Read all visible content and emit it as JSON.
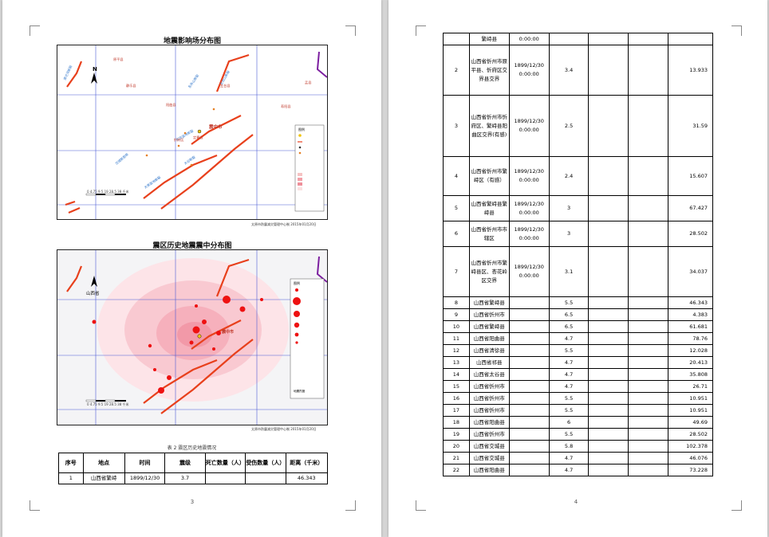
{
  "page3": {
    "page_number": "3",
    "map1": {
      "title": "地震影响场分布图",
      "credit": "太原市防震减灾管理中心制 2015年01月20日",
      "scale": "0 4.75 9.5 19 28.5 38 千米",
      "labels": {
        "north": "N",
        "epicenter": "震中市",
        "county1": "原平县",
        "county2": "五台县",
        "county3": "定襄县",
        "county4": "忻府区",
        "county5": "静乐县",
        "county6": "阳曲县",
        "county7": "寿阳县",
        "county8": "盂县",
        "legend_title": "图例"
      },
      "legend_items": [
        "震中",
        "断裂带",
        "县城",
        "乡镇",
        "烈度区"
      ]
    },
    "map2": {
      "title": "震区历史地震震中分布图",
      "credit": "太原市防震减灾管理中心制 2015年01月20日",
      "scale": "0 4.75 9.5 19 28.5 38 千米",
      "labels": {
        "province": "山西省",
        "epicenter": "震中市",
        "legend_title": "图例",
        "intensity": "地震烈度"
      },
      "legend_items": [
        "震中",
        "7级以上地震",
        "6级地震",
        "5级地震",
        "4级地震",
        "3级地震",
        "断裂带",
        "县城",
        "乡镇"
      ]
    },
    "table_caption": "表 2 震区历史地震情况",
    "table_headers": [
      "序号",
      "地点",
      "时间",
      "震级",
      "死亡数量（人）",
      "受伤数量（人）",
      "距离（千米）"
    ],
    "table_rows": [
      [
        "1",
        "山西省繁峙",
        "1899/12/30",
        "3.7",
        "",
        "",
        "46.343"
      ]
    ]
  },
  "page4": {
    "page_number": "4",
    "rows": [
      {
        "no": "",
        "place": "繁峙县",
        "time": "0:00:00",
        "mag": "",
        "dist": ""
      },
      {
        "no": "2",
        "place": "山西省忻州市原平县、忻府区交界县交界",
        "time": "1899/12/30 0:00:00",
        "mag": "3.4",
        "dist": "13.933"
      },
      {
        "no": "3",
        "place": "山西省忻州市忻府区、繁峙县阳曲区交界(有感)",
        "time": "1899/12/30 0:00:00",
        "mag": "2.5",
        "dist": "31.59"
      },
      {
        "no": "4",
        "place": "山西省忻州市繁峙区（有感）",
        "time": "1899/12/30 0:00:00",
        "mag": "2.4",
        "dist": "15.607"
      },
      {
        "no": "5",
        "place": "山西省繁峙县繁峙县",
        "time": "1899/12/30 0:00:00",
        "mag": "3",
        "dist": "67.427"
      },
      {
        "no": "6",
        "place": "山西省忻州市市辖区",
        "time": "1899/12/30 0:00:00",
        "mag": "3",
        "dist": "28.502"
      },
      {
        "no": "7",
        "place": "山西省忻州市繁峙县区、杏花岭区交界",
        "time": "1899/12/30 0:00:00",
        "mag": "3.1",
        "dist": "34.037"
      },
      {
        "no": "8",
        "place": "山西省繁峙县",
        "time": "",
        "mag": "5.5",
        "dist": "46.343"
      },
      {
        "no": "9",
        "place": "山西省忻州市",
        "time": "",
        "mag": "6.5",
        "dist": "4.383"
      },
      {
        "no": "10",
        "place": "山西省繁峙县",
        "time": "",
        "mag": "6.5",
        "dist": "61.681"
      },
      {
        "no": "11",
        "place": "山西省阳曲县",
        "time": "",
        "mag": "4.7",
        "dist": "78.76"
      },
      {
        "no": "12",
        "place": "山西省清徐县",
        "time": "",
        "mag": "5.5",
        "dist": "12.028"
      },
      {
        "no": "13",
        "place": "山西省祁县",
        "time": "",
        "mag": "4.7",
        "dist": "20.413"
      },
      {
        "no": "14",
        "place": "山西省太谷县",
        "time": "",
        "mag": "4.7",
        "dist": "35.808"
      },
      {
        "no": "15",
        "place": "山西省忻州市",
        "time": "",
        "mag": "4.7",
        "dist": "26.71"
      },
      {
        "no": "16",
        "place": "山西省忻州市",
        "time": "",
        "mag": "5.5",
        "dist": "10.951"
      },
      {
        "no": "17",
        "place": "山西省忻州市",
        "time": "",
        "mag": "5.5",
        "dist": "10.951"
      },
      {
        "no": "18",
        "place": "山西省阳曲县",
        "time": "",
        "mag": "6",
        "dist": "49.69"
      },
      {
        "no": "19",
        "place": "山西省忻州市",
        "time": "",
        "mag": "5.5",
        "dist": "28.502"
      },
      {
        "no": "20",
        "place": "山西省交城县",
        "time": "",
        "mag": "5.8",
        "dist": "102.378"
      },
      {
        "no": "21",
        "place": "山西省交城县",
        "time": "",
        "mag": "4.7",
        "dist": "46.076"
      },
      {
        "no": "22",
        "place": "山西省阳曲县",
        "time": "",
        "mag": "4.7",
        "dist": "73.228"
      }
    ]
  }
}
